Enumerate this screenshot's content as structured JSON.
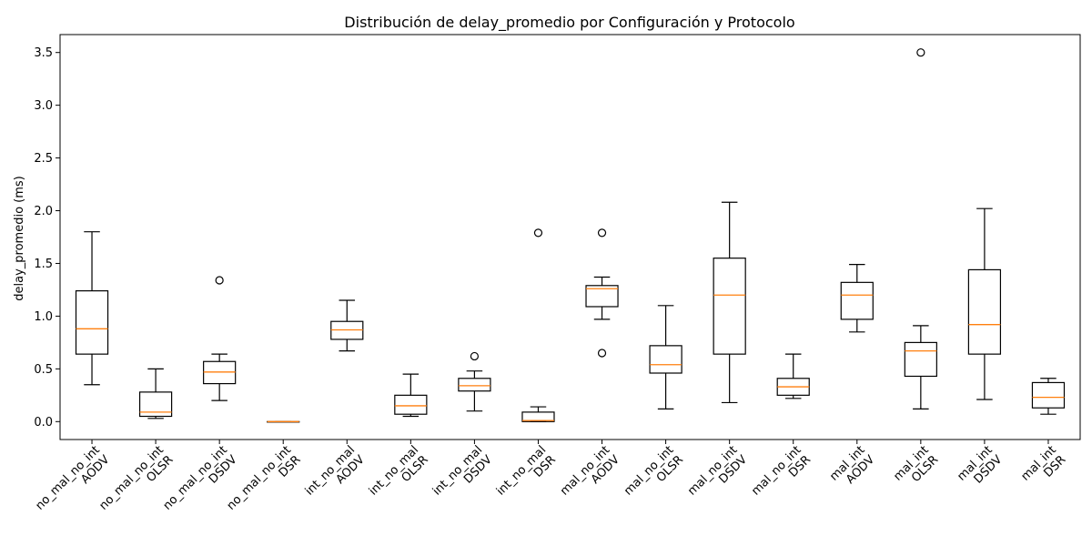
{
  "chart_data": {
    "type": "box",
    "title": "Distribución de delay_promedio por Configuración y Protocolo",
    "ylabel": "delay_promedio (ms)",
    "ylim": [
      -0.17,
      3.67
    ],
    "yticks": [
      0.0,
      0.5,
      1.0,
      1.5,
      2.0,
      2.5,
      3.0,
      3.5
    ],
    "ytick_labels": [
      "0.0",
      "0.5",
      "1.0",
      "1.5",
      "2.0",
      "2.5",
      "3.0",
      "3.5"
    ],
    "colors": {
      "box": "#000000",
      "median": "#ff7f0e"
    },
    "categories": [
      {
        "line1": "no_mal_no_int",
        "line2": "AODV",
        "min": 0.35,
        "q1": 0.64,
        "median": 0.88,
        "q3": 1.24,
        "max": 1.8,
        "fliers": []
      },
      {
        "line1": "no_mal_no_int",
        "line2": "OLSR",
        "min": 0.03,
        "q1": 0.05,
        "median": 0.09,
        "q3": 0.28,
        "max": 0.5,
        "fliers": []
      },
      {
        "line1": "no_mal_no_int",
        "line2": "DSDV",
        "min": 0.2,
        "q1": 0.36,
        "median": 0.47,
        "q3": 0.57,
        "max": 0.64,
        "fliers": [
          1.34
        ]
      },
      {
        "line1": "no_mal_no_int",
        "line2": "DSR",
        "min": 0.0,
        "q1": 0.0,
        "median": 0.0,
        "q3": 0.0,
        "max": 0.0,
        "fliers": []
      },
      {
        "line1": "int_no_mal",
        "line2": "AODV",
        "min": 0.67,
        "q1": 0.78,
        "median": 0.87,
        "q3": 0.95,
        "max": 1.15,
        "fliers": []
      },
      {
        "line1": "int_no_mal",
        "line2": "OLSR",
        "min": 0.05,
        "q1": 0.07,
        "median": 0.15,
        "q3": 0.25,
        "max": 0.45,
        "fliers": []
      },
      {
        "line1": "int_no_mal",
        "line2": "DSDV",
        "min": 0.1,
        "q1": 0.29,
        "median": 0.34,
        "q3": 0.41,
        "max": 0.48,
        "fliers": [
          0.62
        ]
      },
      {
        "line1": "int_no_mal",
        "line2": "DSR",
        "min": 0.0,
        "q1": 0.0,
        "median": 0.01,
        "q3": 0.09,
        "max": 0.14,
        "fliers": [
          1.79
        ]
      },
      {
        "line1": "mal_no_int",
        "line2": "AODV",
        "min": 0.97,
        "q1": 1.09,
        "median": 1.26,
        "q3": 1.29,
        "max": 1.37,
        "fliers": [
          1.79,
          0.65
        ]
      },
      {
        "line1": "mal_no_int",
        "line2": "OLSR",
        "min": 0.12,
        "q1": 0.46,
        "median": 0.54,
        "q3": 0.72,
        "max": 1.1,
        "fliers": []
      },
      {
        "line1": "mal_no_int",
        "line2": "DSDV",
        "min": 0.18,
        "q1": 0.64,
        "median": 1.2,
        "q3": 1.55,
        "max": 2.08,
        "fliers": []
      },
      {
        "line1": "mal_no_int",
        "line2": "DSR",
        "min": 0.22,
        "q1": 0.25,
        "median": 0.33,
        "q3": 0.41,
        "max": 0.64,
        "fliers": []
      },
      {
        "line1": "mal_int",
        "line2": "AODV",
        "min": 0.85,
        "q1": 0.97,
        "median": 1.2,
        "q3": 1.32,
        "max": 1.49,
        "fliers": []
      },
      {
        "line1": "mal_int",
        "line2": "OLSR",
        "min": 0.12,
        "q1": 0.43,
        "median": 0.67,
        "q3": 0.75,
        "max": 0.91,
        "fliers": [
          3.5
        ]
      },
      {
        "line1": "mal_int",
        "line2": "DSDV",
        "min": 0.21,
        "q1": 0.64,
        "median": 0.92,
        "q3": 1.44,
        "max": 2.02,
        "fliers": []
      },
      {
        "line1": "mal_int",
        "line2": "DSR",
        "min": 0.07,
        "q1": 0.13,
        "median": 0.23,
        "q3": 0.37,
        "max": 0.41,
        "fliers": []
      }
    ]
  }
}
